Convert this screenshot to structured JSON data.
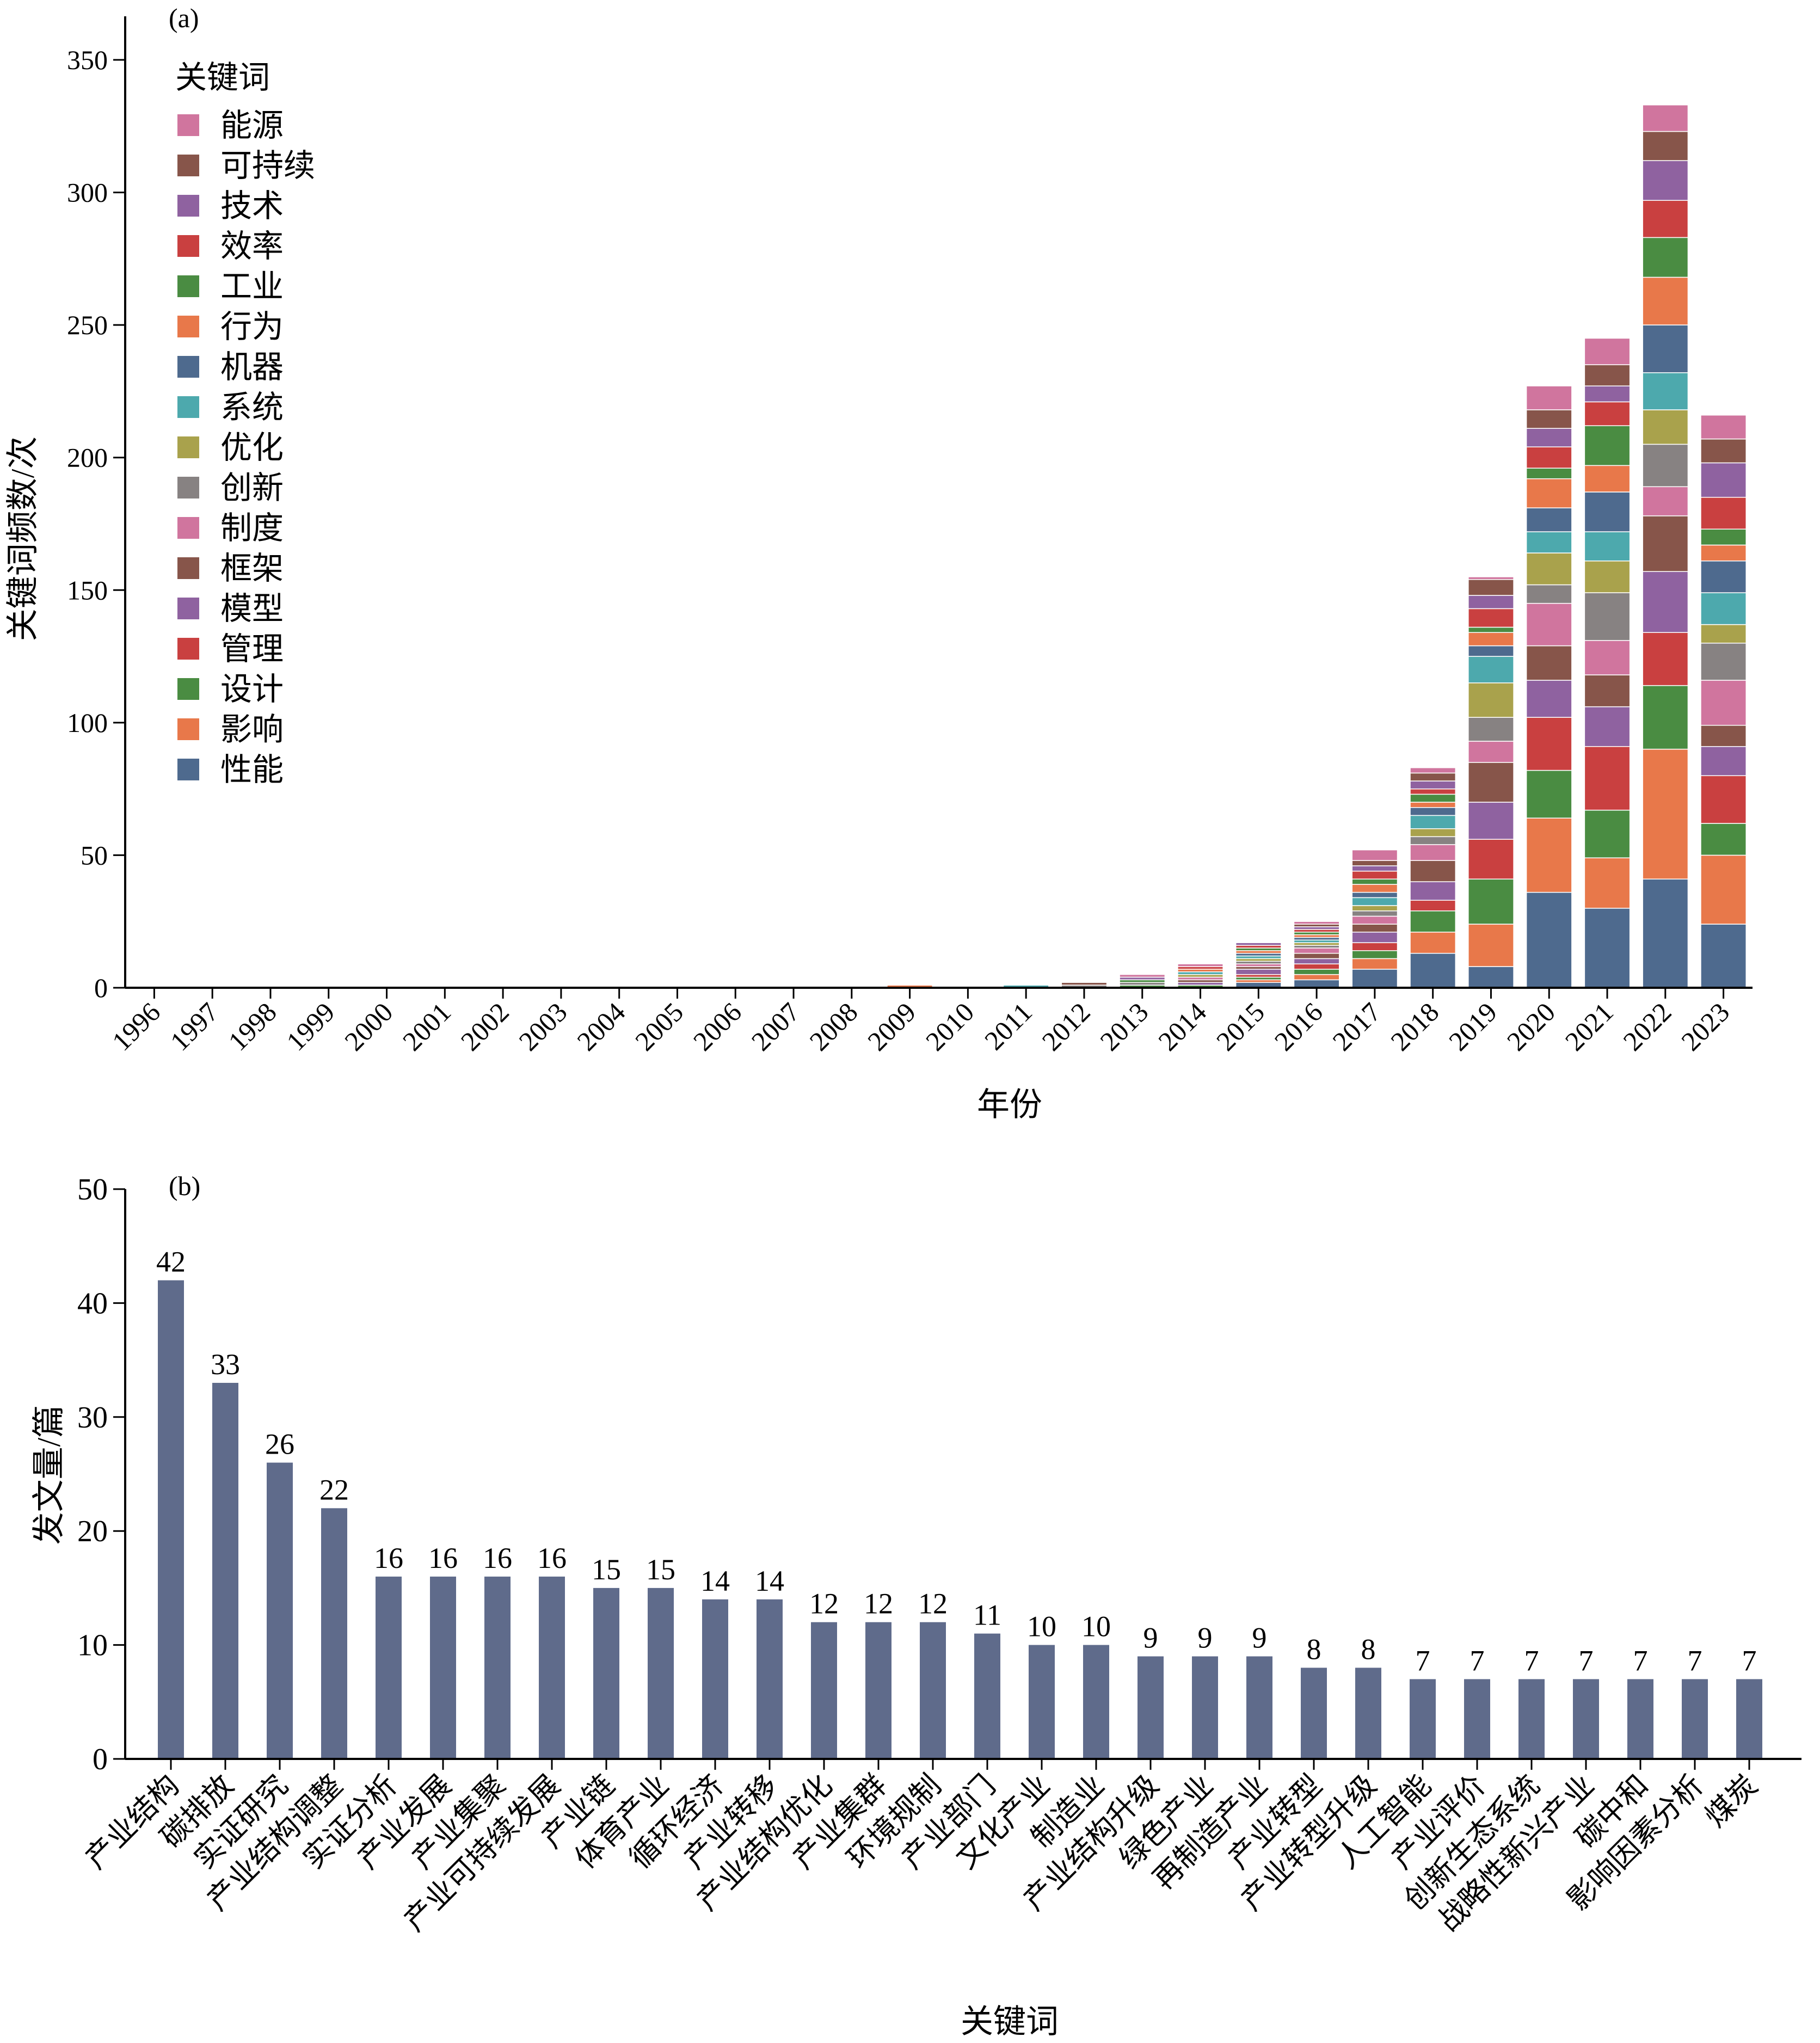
{
  "chart_data": [
    {
      "panel_label": "(a)",
      "type": "bar",
      "stacked": true,
      "xlabel": "年份",
      "ylabel": "关键词频数/次",
      "ylim": [
        0,
        350
      ],
      "yticks": [
        0,
        50,
        100,
        150,
        200,
        250,
        300,
        350
      ],
      "legend_title": "关键词",
      "legend_position": "top-left",
      "categories": [
        "1996",
        "1997",
        "1998",
        "1999",
        "2000",
        "2001",
        "2002",
        "2003",
        "2004",
        "2005",
        "2006",
        "2007",
        "2008",
        "2009",
        "2010",
        "2011",
        "2012",
        "2013",
        "2014",
        "2015",
        "2016",
        "2017",
        "2018",
        "2019",
        "2020",
        "2021",
        "2022",
        "2023"
      ],
      "series": [
        {
          "name": "性能",
          "color": "#4e6a8e",
          "values": [
            0,
            0,
            0,
            0,
            0,
            0,
            0,
            0,
            0,
            0,
            0,
            0,
            0,
            0,
            0,
            0,
            0,
            0,
            0,
            2,
            3,
            7,
            13,
            8,
            36,
            30,
            41,
            24
          ]
        },
        {
          "name": "影响",
          "color": "#e8784a",
          "values": [
            0,
            0,
            0,
            0,
            0,
            0,
            0,
            0,
            0,
            0,
            0,
            0,
            0,
            1,
            0,
            0,
            0,
            0,
            0,
            1,
            2,
            4,
            8,
            16,
            28,
            19,
            49,
            26
          ]
        },
        {
          "name": "设计",
          "color": "#4a8c42",
          "values": [
            0,
            0,
            0,
            0,
            0,
            0,
            0,
            0,
            0,
            0,
            0,
            0,
            0,
            0,
            0,
            0,
            0,
            1,
            1,
            1,
            2,
            3,
            8,
            17,
            18,
            18,
            24,
            12
          ]
        },
        {
          "name": "管理",
          "color": "#c94040",
          "values": [
            0,
            0,
            0,
            0,
            0,
            0,
            0,
            0,
            0,
            0,
            0,
            0,
            0,
            0,
            0,
            0,
            0,
            0,
            0,
            1,
            2,
            3,
            4,
            15,
            20,
            24,
            20,
            18
          ]
        },
        {
          "name": "模型",
          "color": "#8f62a0",
          "values": [
            0,
            0,
            0,
            0,
            0,
            0,
            0,
            0,
            0,
            0,
            0,
            0,
            0,
            0,
            0,
            0,
            0,
            0,
            1,
            2,
            2,
            4,
            7,
            14,
            14,
            15,
            23,
            11
          ]
        },
        {
          "name": "框架",
          "color": "#87554a",
          "values": [
            0,
            0,
            0,
            0,
            0,
            0,
            0,
            0,
            0,
            0,
            0,
            0,
            0,
            0,
            0,
            0,
            0,
            0,
            1,
            1,
            2,
            3,
            8,
            15,
            13,
            12,
            21,
            8
          ]
        },
        {
          "name": "制度",
          "color": "#d0759e",
          "values": [
            0,
            0,
            0,
            0,
            0,
            0,
            0,
            0,
            0,
            0,
            0,
            0,
            0,
            0,
            0,
            0,
            0,
            0,
            1,
            1,
            2,
            3,
            6,
            8,
            16,
            13,
            11,
            17
          ]
        },
        {
          "name": "创新",
          "color": "#878282",
          "values": [
            0,
            0,
            0,
            0,
            0,
            0,
            0,
            0,
            0,
            0,
            0,
            0,
            0,
            0,
            0,
            0,
            1,
            1,
            0,
            1,
            1,
            2,
            3,
            9,
            7,
            18,
            16,
            14
          ]
        },
        {
          "name": "优化",
          "color": "#a9a24c",
          "values": [
            0,
            0,
            0,
            0,
            0,
            0,
            0,
            0,
            0,
            0,
            0,
            0,
            0,
            0,
            0,
            0,
            0,
            0,
            1,
            1,
            1,
            2,
            3,
            13,
            12,
            12,
            13,
            7
          ]
        },
        {
          "name": "系统",
          "color": "#4da9ad",
          "values": [
            0,
            0,
            0,
            0,
            0,
            0,
            0,
            0,
            0,
            0,
            0,
            0,
            0,
            0,
            0,
            1,
            0,
            0,
            1,
            1,
            1,
            3,
            5,
            10,
            8,
            11,
            14,
            12
          ]
        },
        {
          "name": "机器",
          "color": "#4e6a8e",
          "values": [
            0,
            0,
            0,
            0,
            0,
            0,
            0,
            0,
            0,
            0,
            0,
            0,
            0,
            0,
            0,
            0,
            0,
            0,
            0,
            1,
            1,
            2,
            3,
            4,
            9,
            15,
            18,
            12
          ]
        },
        {
          "name": "行为",
          "color": "#e8784a",
          "values": [
            0,
            0,
            0,
            0,
            0,
            0,
            0,
            0,
            0,
            0,
            0,
            0,
            0,
            0,
            0,
            0,
            0,
            0,
            1,
            1,
            1,
            3,
            2,
            5,
            11,
            10,
            18,
            6
          ]
        },
        {
          "name": "工业",
          "color": "#4a8c42",
          "values": [
            0,
            0,
            0,
            0,
            0,
            0,
            0,
            0,
            0,
            0,
            0,
            0,
            0,
            0,
            0,
            0,
            0,
            1,
            0,
            1,
            1,
            2,
            3,
            2,
            4,
            15,
            15,
            6
          ]
        },
        {
          "name": "效率",
          "color": "#c94040",
          "values": [
            0,
            0,
            0,
            0,
            0,
            0,
            0,
            0,
            0,
            0,
            0,
            0,
            0,
            0,
            0,
            0,
            0,
            0,
            1,
            1,
            1,
            3,
            2,
            7,
            8,
            9,
            14,
            12
          ]
        },
        {
          "name": "技术",
          "color": "#8f62a0",
          "values": [
            0,
            0,
            0,
            0,
            0,
            0,
            0,
            0,
            0,
            0,
            0,
            0,
            0,
            0,
            0,
            0,
            0,
            1,
            0,
            1,
            1,
            2,
            3,
            5,
            7,
            6,
            15,
            13
          ]
        },
        {
          "name": "可持续",
          "color": "#87554a",
          "values": [
            0,
            0,
            0,
            0,
            0,
            0,
            0,
            0,
            0,
            0,
            0,
            0,
            0,
            0,
            0,
            0,
            1,
            0,
            0,
            0,
            1,
            2,
            3,
            6,
            7,
            8,
            11,
            9
          ]
        },
        {
          "name": "能源",
          "color": "#d0759e",
          "values": [
            0,
            0,
            0,
            0,
            0,
            0,
            0,
            0,
            0,
            0,
            0,
            0,
            0,
            0,
            0,
            0,
            0,
            1,
            1,
            0,
            1,
            4,
            2,
            1,
            9,
            10,
            10,
            9
          ]
        }
      ]
    },
    {
      "panel_label": "(b)",
      "type": "bar",
      "xlabel": "关键词",
      "ylabel": "发文量/篇",
      "ylim": [
        0,
        50
      ],
      "yticks": [
        0,
        10,
        20,
        30,
        40,
        50
      ],
      "bar_color": "#5f6b8b",
      "categories": [
        "产业结构",
        "碳排放",
        "实证研究",
        "产业结构调整",
        "实证分析",
        "产业发展",
        "产业集聚",
        "产业可持续发展",
        "产业链",
        "体育产业",
        "循环经济",
        "产业转移",
        "产业结构优化",
        "产业集群",
        "环境规制",
        "产业部门",
        "文化产业",
        "制造业",
        "产业结构升级",
        "绿色产业",
        "再制造产业",
        "产业转型",
        "产业转型升级",
        "人工智能",
        "产业评价",
        "创新生态系统",
        "战略性新兴产业",
        "碳中和",
        "影响因素分析",
        "煤炭"
      ],
      "values": [
        42,
        33,
        26,
        22,
        16,
        16,
        16,
        16,
        15,
        15,
        14,
        14,
        12,
        12,
        12,
        11,
        10,
        10,
        9,
        9,
        9,
        8,
        8,
        7,
        7,
        7,
        7,
        7,
        7,
        7
      ],
      "data_labels": [
        "42",
        "33",
        "26",
        "22",
        "16",
        "16",
        "16",
        "16",
        "15",
        "15",
        "14",
        "14",
        "12",
        "12",
        "12",
        "11",
        "10",
        "10",
        "9",
        "9",
        "9",
        "8",
        "8",
        "7",
        "7",
        "7",
        "7",
        "7",
        "7",
        "7"
      ]
    }
  ]
}
